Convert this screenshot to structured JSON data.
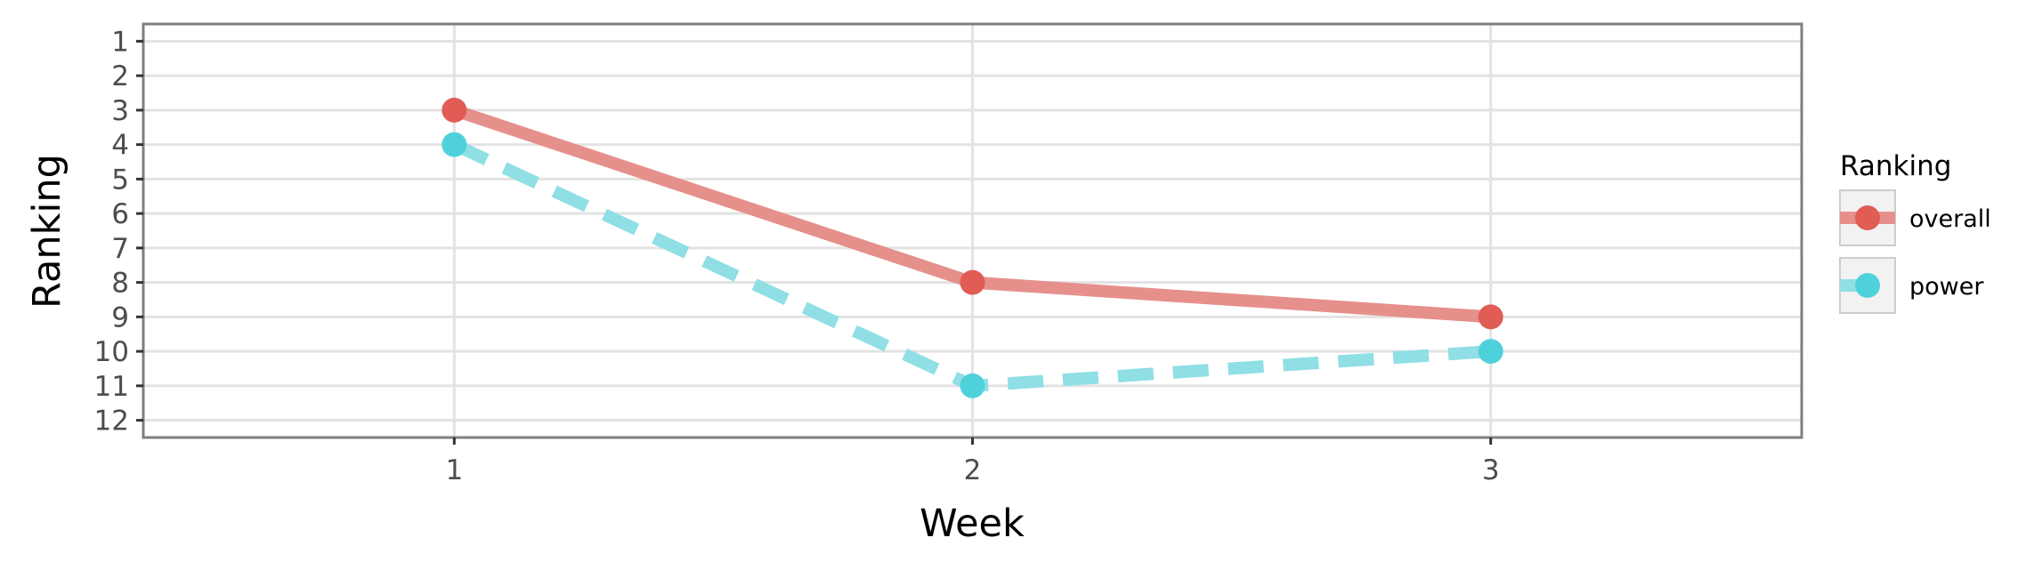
{
  "chart_data": {
    "type": "line",
    "title": "",
    "xlabel": "Week",
    "ylabel": "Ranking",
    "x": [
      1,
      2,
      3
    ],
    "x_ticks": [
      "1",
      "2",
      "3"
    ],
    "xlim": [
      0.4,
      3.6
    ],
    "y_ticks": [
      "1",
      "2",
      "3",
      "4",
      "5",
      "6",
      "7",
      "8",
      "9",
      "10",
      "11",
      "12"
    ],
    "ylim": [
      12.5,
      0.5
    ],
    "y_reversed": true,
    "grid": true,
    "legend": {
      "title": "Ranking",
      "placement": "right"
    },
    "series": [
      {
        "name": "overall",
        "values": [
          3,
          8,
          9
        ],
        "color": "#e05c55",
        "line_color": "#e6908c",
        "line_style": "solid"
      },
      {
        "name": "power",
        "values": [
          4,
          11,
          10
        ],
        "color": "#4fd1db",
        "line_color": "#8fdfe5",
        "line_style": "dashed"
      }
    ]
  }
}
